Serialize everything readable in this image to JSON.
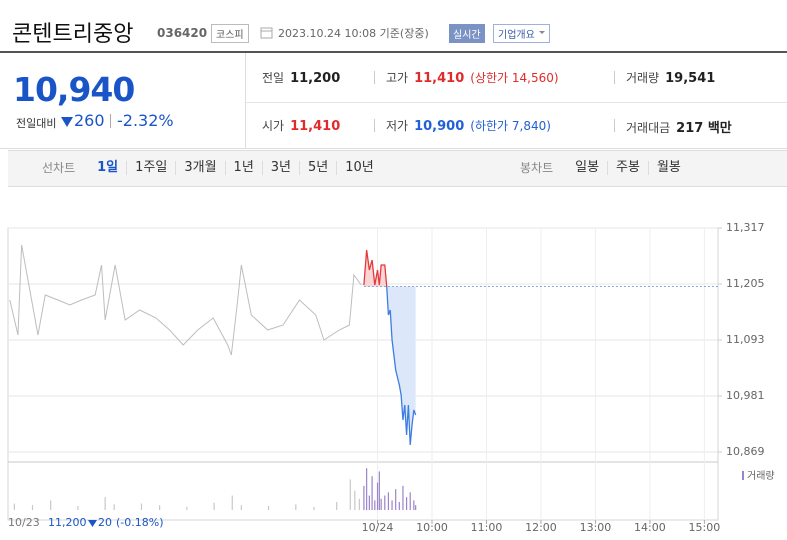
{
  "header": {
    "name": "콘텐트리중앙",
    "code": "036420",
    "market": "코스피",
    "datetime": "2023.10.24 10:08 기준(장중)",
    "realtime": "실시간",
    "company_info": "기업개요"
  },
  "quote": {
    "price": "10,940",
    "change_label": "전일대비",
    "change": "260",
    "change_percent": "-2.32%"
  },
  "stats": [
    {
      "label": "전일",
      "value": "11,200",
      "color": "#222222"
    },
    {
      "label": "고가",
      "value": "11,410",
      "extra": "(상한가 14,560)",
      "color": "#e12b2b"
    },
    {
      "label": "거래량",
      "value": "19,541",
      "color": "#222222"
    },
    {
      "label": "시가",
      "value": "11,410",
      "color": "#e12b2b"
    },
    {
      "label": "저가",
      "value": "10,900",
      "extra": "(하한가 7,840)",
      "color": "#2160d6"
    },
    {
      "label": "거래대금",
      "value": "217 백만",
      "color": "#222222"
    }
  ],
  "tabs": {
    "line_label": "선차트",
    "line_periods": [
      "1일",
      "1주일",
      "3개월",
      "1년",
      "3년",
      "5년",
      "10년"
    ],
    "candle_label": "봉차트",
    "candle_periods": [
      "일봉",
      "주봉",
      "월봉"
    ]
  },
  "chart_data": {
    "type": "line",
    "ylim": [
      10849,
      11317
    ],
    "yticks": [
      {
        "value": 10869,
        "label": "10,869"
      },
      {
        "value": 10981,
        "label": "10,981"
      },
      {
        "value": 11093,
        "label": "11,093"
      },
      {
        "value": 11205,
        "label": "11,205"
      },
      {
        "value": 11317,
        "label": "11,317"
      }
    ],
    "xlim": [
      -407,
      375
    ],
    "xticks": [
      {
        "value": 0,
        "label": "10/24"
      },
      {
        "value": 60,
        "label": "10:00"
      },
      {
        "value": 120,
        "label": "11:00"
      },
      {
        "value": 180,
        "label": "12:00"
      },
      {
        "value": 240,
        "label": "13:00"
      },
      {
        "value": 300,
        "label": "14:00"
      },
      {
        "value": 360,
        "label": "15:00"
      }
    ],
    "grid": true,
    "baseline": 11200,
    "series": [
      {
        "color": "#bdbdbd",
        "x": [
          -405,
          -396,
          -392,
          -383,
          -374,
          -366,
          -352,
          -339,
          -326,
          -311,
          -304,
          -300,
          -289,
          -278,
          -262,
          -244,
          -229,
          -214,
          -198,
          -181,
          -165,
          -161,
          -154,
          -150,
          -139,
          -121,
          -104,
          -86,
          -68,
          -59,
          -42,
          -31,
          -26,
          -18
        ],
        "values": [
          11173,
          11103,
          11283,
          11193,
          11103,
          11183,
          11173,
          11163,
          11173,
          11183,
          11243,
          11133,
          11243,
          11133,
          11153,
          11137,
          11113,
          11083,
          11113,
          11137,
          11083,
          11063,
          11173,
          11243,
          11143,
          11113,
          11123,
          11173,
          11143,
          11093,
          11113,
          11123,
          11223,
          11203
        ]
      },
      {
        "color": "#3d7de0",
        "up_color": "#e5383b",
        "x": [
          -15,
          -12,
          -9,
          -6,
          -3,
          0,
          2,
          4,
          8,
          10,
          12,
          14,
          16,
          18,
          20,
          24,
          26,
          28,
          30,
          32,
          34,
          36,
          38,
          40,
          42
        ],
        "values": [
          11203,
          11273,
          11233,
          11253,
          11203,
          11233,
          11203,
          11243,
          11243,
          11203,
          11143,
          11153,
          11093,
          11063,
          11033,
          11003,
          10983,
          10933,
          10963,
          10903,
          10963,
          10883,
          10923,
          10953,
          10943
        ]
      }
    ],
    "volume": {
      "label": "거래량",
      "ylim": [
        0,
        2800
      ],
      "series": [
        {
          "color": "#c8c8c8",
          "x": [
            -400,
            -380,
            -360,
            -330,
            -300,
            -290,
            -260,
            -240,
            -210,
            -180,
            -160,
            -150,
            -120,
            -90,
            -70,
            -45,
            -30,
            -25,
            -20
          ],
          "values": [
            400,
            300,
            600,
            250,
            800,
            350,
            400,
            300,
            200,
            450,
            900,
            300,
            250,
            350,
            200,
            500,
            1900,
            1200,
            700
          ]
        },
        {
          "color": "#9a84cc",
          "x": [
            -15,
            -12,
            -9,
            -6,
            -3,
            0,
            2,
            4,
            8,
            12,
            16,
            20,
            24,
            28,
            32,
            36,
            40,
            42
          ],
          "values": [
            1500,
            2600,
            900,
            2100,
            600,
            1700,
            2400,
            700,
            900,
            1100,
            600,
            1300,
            500,
            1500,
            800,
            1100,
            600,
            300
          ]
        }
      ]
    }
  },
  "footer": {
    "date": "10/23",
    "price": "11,200",
    "change": "20",
    "change_percent": "(-0.18%)"
  }
}
